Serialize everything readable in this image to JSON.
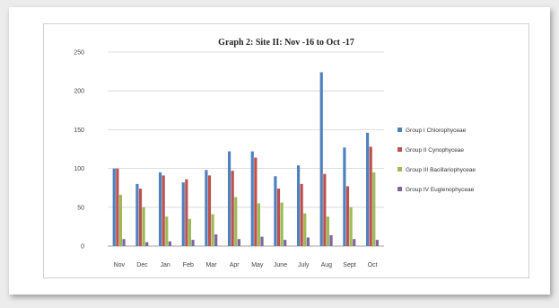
{
  "chart_data": {
    "type": "bar",
    "title": "Graph 2: Site II: Nov -16 to Oct -17",
    "categories": [
      "Nov",
      "Dec",
      "Jan",
      "Feb",
      "Mar",
      "Apr",
      "May",
      "June",
      "July",
      "Aug",
      "Sept",
      "Oct"
    ],
    "ylim": [
      0,
      250
    ],
    "yticks": [
      0,
      50,
      100,
      150,
      200,
      250
    ],
    "grid": true,
    "legend_position": "right",
    "series": [
      {
        "name": "Group I  Chlorophyceae",
        "color": "#4f81bd",
        "values": [
          100,
          80,
          95,
          82,
          98,
          122,
          122,
          90,
          104,
          224,
          127,
          146
        ]
      },
      {
        "name": "Group II  Cynophyceae",
        "color": "#c0504d",
        "values": [
          100,
          74,
          91,
          86,
          91,
          97,
          114,
          74,
          80,
          93,
          77,
          128
        ]
      },
      {
        "name": "Group III Bacillariophyceae",
        "color": "#9bbb59",
        "values": [
          66,
          50,
          38,
          35,
          41,
          63,
          55,
          56,
          42,
          38,
          50,
          95
        ]
      },
      {
        "name": "Group IV Euglenophyceae",
        "color": "#8064a2",
        "values": [
          9,
          5,
          6,
          8,
          15,
          9,
          12,
          8,
          11,
          14,
          9,
          8
        ]
      }
    ]
  }
}
